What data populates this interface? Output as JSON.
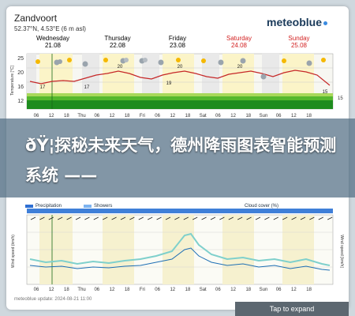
{
  "header": {
    "location": "Zandvoort",
    "coords": "52.37°N, 4.53°E (6 m asl)",
    "brand": "meteoblue"
  },
  "days": [
    {
      "name": "Wednesday",
      "date": "21.08",
      "weekend": false
    },
    {
      "name": "Thursday",
      "date": "22.08",
      "weekend": false
    },
    {
      "name": "Friday",
      "date": "23.08",
      "weekend": false
    },
    {
      "name": "Saturday",
      "date": "24.08",
      "weekend": true
    },
    {
      "name": "Sunday",
      "date": "25.08",
      "weekend": true
    }
  ],
  "temp_chart": {
    "ylabel": "Temperature [°C]",
    "yticks": [
      "25",
      "20",
      "16",
      "12"
    ],
    "xticks": [
      "06",
      "12",
      "18",
      "Thu",
      "06",
      "12",
      "18",
      "Fri",
      "06",
      "12",
      "18",
      "Sat",
      "06",
      "12",
      "18",
      "Sun",
      "06",
      "12",
      "18"
    ],
    "labels": [
      "17",
      "17",
      "20",
      "19",
      "20",
      "20",
      "15"
    ],
    "right_label": "15"
  },
  "headline": "ðŸ¦探秘未来天气，德州降雨图表智能预测系统 ——",
  "legend": {
    "precipitation": "Precipitation",
    "showers": "Showers",
    "cloud_cover": "Cloud cover (%)",
    "precip_color": "#2e6fd3",
    "showers_color": "#7db3f0"
  },
  "wind_chart": {
    "ylabel": "Wind speed (km/h)",
    "right_label": "Wind speed [km/h]",
    "xticks": [
      "06",
      "12",
      "18",
      "Thu",
      "06",
      "12",
      "18",
      "Fri",
      "06",
      "12",
      "18",
      "Sat",
      "06",
      "12",
      "18",
      "Sun",
      "06",
      "12",
      "18"
    ]
  },
  "footer": {
    "credit": "meteoblue   update: 2024-08-21 11:00"
  },
  "expand_label": "Tap to expand"
}
